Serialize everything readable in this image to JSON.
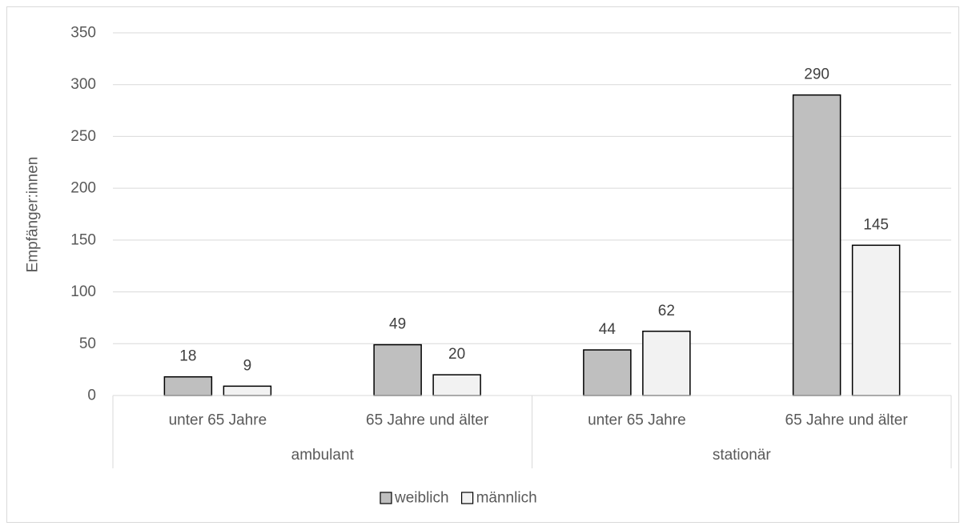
{
  "chart_data": {
    "type": "bar",
    "title": "",
    "ylabel": "Empfänger:innen",
    "xlabel": "",
    "ylim": [
      0,
      350
    ],
    "yticks": [
      0,
      50,
      100,
      150,
      200,
      250,
      300,
      350
    ],
    "grid": true,
    "legend_position": "bottom",
    "groups": [
      {
        "label": "ambulant",
        "categories": [
          "unter 65 Jahre",
          "65 Jahre und älter"
        ]
      },
      {
        "label": "stationär",
        "categories": [
          "unter 65 Jahre",
          "65 Jahre und älter"
        ]
      }
    ],
    "series": [
      {
        "name": "weiblich",
        "color": "#bfbfbf",
        "values": [
          18,
          49,
          44,
          290
        ]
      },
      {
        "name": "männlich",
        "color": "#f2f2f2",
        "values": [
          9,
          20,
          62,
          145
        ]
      }
    ]
  }
}
